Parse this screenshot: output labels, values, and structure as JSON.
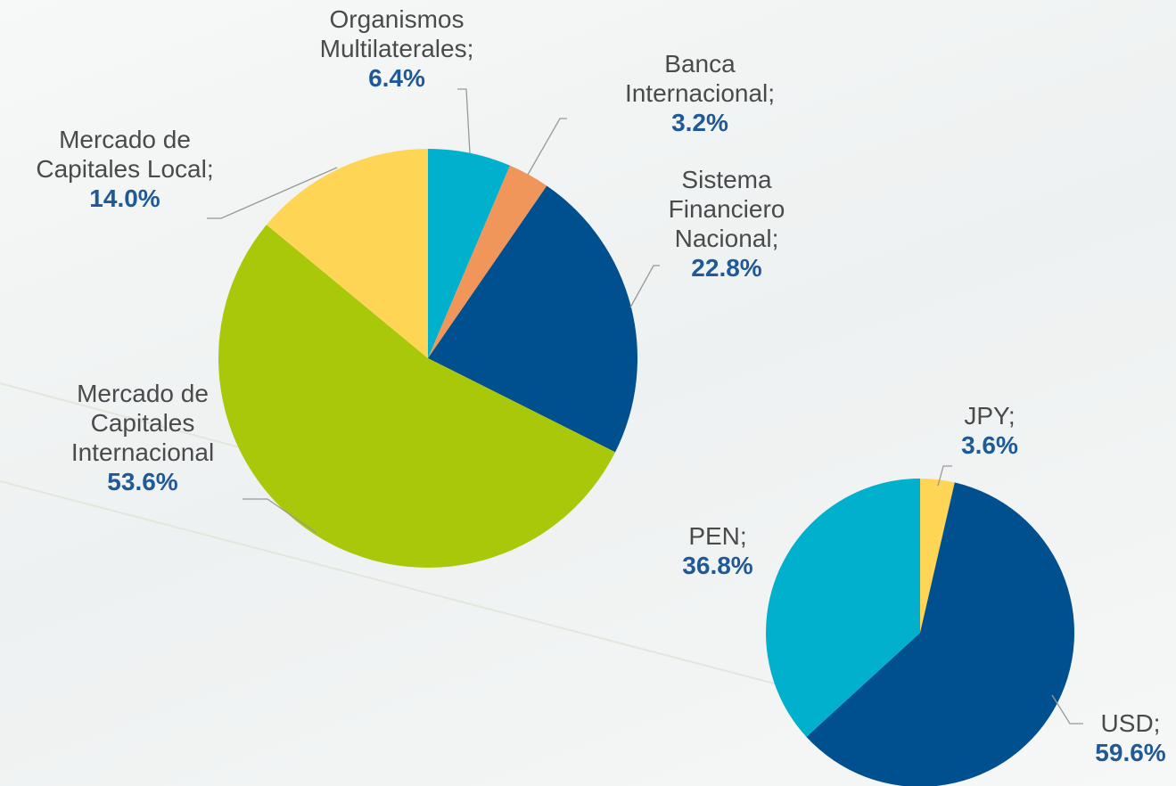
{
  "chart_data": [
    {
      "type": "pie",
      "categories": [
        "Organismos Multilaterales;",
        "Banca Internacional;",
        "Sistema Financiero Nacional;",
        "Mercado de Capitales Internacional",
        "Mercado de Capitales Local;"
      ],
      "values": [
        6.4,
        3.2,
        22.8,
        53.6,
        14.0
      ],
      "value_labels": [
        "6.4%",
        "3.2%",
        "22.8%",
        "53.6%",
        "14.0%"
      ],
      "colors": [
        "#00b0cc",
        "#f0965a",
        "#00508f",
        "#a9c80a",
        "#ffd556"
      ]
    },
    {
      "type": "pie",
      "categories": [
        "JPY;",
        "USD;",
        "PEN;"
      ],
      "values": [
        3.6,
        59.6,
        36.8
      ],
      "value_labels": [
        "3.6%",
        "59.6%",
        "36.8%"
      ],
      "colors": [
        "#ffd556",
        "#00508f",
        "#00b0cc"
      ]
    }
  ]
}
